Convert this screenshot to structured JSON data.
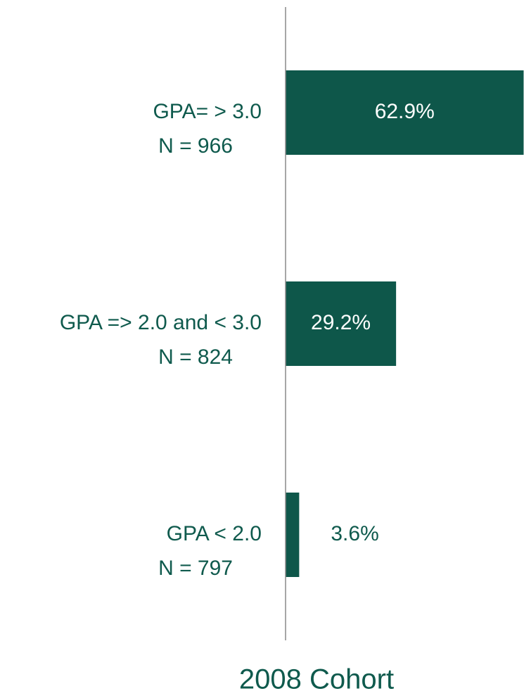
{
  "chart_data": {
    "type": "hbar",
    "title": "2008 Cohort",
    "categories": [
      [
        "GPA= > 3.0",
        "N = 966"
      ],
      [
        "GPA => 2.0 and < 3.0",
        "N = 824"
      ],
      [
        "GPA < 2.0",
        "N = 797"
      ]
    ],
    "values": [
      62.9,
      29.2,
      3.6
    ],
    "value_labels": [
      "62.9%",
      "29.2%",
      "3.6%"
    ],
    "color": "#0e574a",
    "xlim": [
      0,
      63
    ]
  }
}
